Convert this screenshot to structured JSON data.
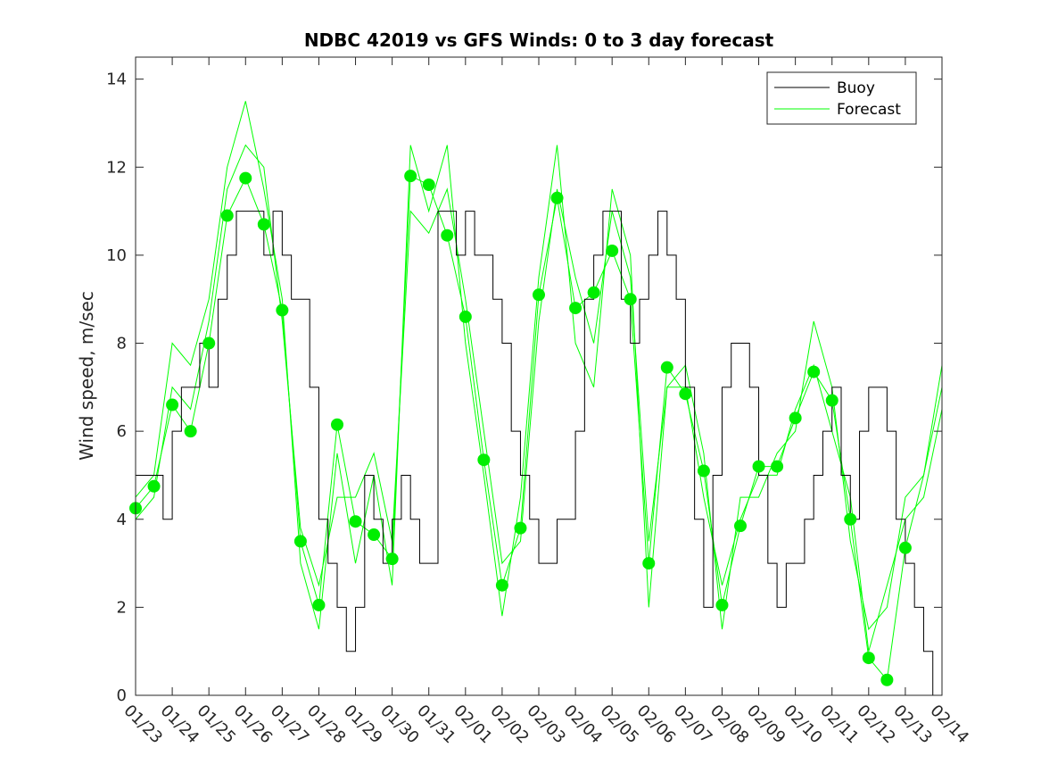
{
  "chart_data": {
    "type": "line",
    "title": "NDBC 42019 vs GFS Winds: 0 to 3 day forecast",
    "xlabel": "",
    "ylabel": "Wind speed, m/sec",
    "ylim": [
      0,
      14.5
    ],
    "yticks": [
      0,
      2,
      4,
      6,
      8,
      10,
      12,
      14
    ],
    "xlim_days": [
      0,
      22
    ],
    "xtick_labels": [
      "01/23",
      "01/24",
      "01/25",
      "01/26",
      "01/27",
      "01/28",
      "01/29",
      "01/30",
      "01/31",
      "02/01",
      "02/02",
      "02/03",
      "02/04",
      "02/05",
      "02/06",
      "02/07",
      "02/08",
      "02/09",
      "02/10",
      "02/11",
      "02/12",
      "02/13",
      "02/14"
    ],
    "grid": false,
    "legend": {
      "position": "top-right",
      "entries": [
        "Buoy",
        "Forecast"
      ]
    },
    "colors": {
      "buoy": "#000000",
      "forecast": "#00ff00",
      "analysis": "#00ee00"
    },
    "buoy": {
      "name": "Buoy",
      "step_days": 0.25,
      "values": [
        5,
        5,
        5,
        4,
        6,
        7,
        7,
        8,
        7,
        9,
        10,
        11,
        11,
        11,
        10,
        11,
        10,
        9,
        9,
        7,
        4,
        3,
        2,
        1,
        2,
        5,
        4,
        3,
        4,
        5,
        4,
        3,
        3,
        11,
        11,
        10,
        11,
        10,
        10,
        9,
        8,
        6,
        5,
        4,
        3,
        3,
        4,
        4,
        6,
        9,
        10,
        11,
        11,
        9,
        8,
        9,
        10,
        11,
        10,
        9,
        7,
        4,
        2,
        5,
        7,
        8,
        8,
        7,
        5,
        3,
        2,
        3,
        3,
        4,
        5,
        6,
        7,
        5,
        4,
        6,
        7,
        7,
        6,
        4,
        3,
        2,
        1,
        0,
        1,
        4,
        5,
        6,
        6
      ]
    },
    "forecast_runs": {
      "name": "Forecast",
      "step_days": 0.5,
      "runs": [
        [
          4.25,
          4.75,
          6.6,
          6.0,
          8.0,
          10.9,
          11.75,
          10.7,
          8.75,
          3.5,
          2.05,
          6.15,
          3.95,
          3.65,
          3.1,
          11.8,
          11.6,
          10.45,
          8.6,
          5.35,
          2.5,
          3.8,
          9.1,
          11.3,
          8.8,
          9.15,
          10.1,
          9.0,
          3.0,
          7.45,
          6.85,
          5.1,
          2.05,
          3.85,
          5.2,
          5.2,
          6.3,
          7.35,
          6.7,
          4.0,
          0.85,
          0.35,
          3.35,
          5.0,
          7.0
        ],
        [
          4.5,
          5.0,
          8.0,
          7.5,
          9.0,
          12.0,
          13.5,
          11.5,
          9.0,
          3.0,
          1.5,
          5.5,
          3.0,
          5.0,
          2.5,
          12.5,
          11.0,
          12.5,
          8.0,
          5.0,
          1.8,
          4.5,
          9.5,
          12.5,
          8.0,
          7.0,
          11.5,
          10.0,
          2.0,
          7.0,
          7.5,
          5.5,
          1.5,
          4.5,
          4.5,
          5.5,
          6.0,
          8.5,
          7.0,
          3.5,
          1.5,
          2.0,
          4.5,
          5.0,
          7.5
        ],
        [
          4.0,
          4.5,
          7.0,
          6.5,
          8.5,
          11.5,
          12.5,
          12.0,
          8.5,
          3.8,
          2.5,
          4.5,
          4.5,
          5.5,
          3.5,
          11.0,
          10.5,
          11.5,
          9.0,
          6.0,
          3.0,
          3.5,
          8.5,
          11.5,
          9.5,
          8.0,
          11.0,
          9.5,
          3.5,
          7.0,
          7.0,
          4.5,
          2.5,
          4.0,
          5.0,
          5.0,
          6.5,
          7.5,
          6.0,
          4.5,
          1.0,
          2.5,
          4.0,
          4.5,
          6.5
        ]
      ]
    },
    "analysis_points": {
      "step_days": 0.5,
      "values": [
        4.25,
        4.75,
        6.6,
        6.0,
        8.0,
        10.9,
        11.75,
        10.7,
        8.75,
        3.5,
        2.05,
        6.15,
        3.95,
        3.65,
        3.1,
        11.8,
        11.6,
        10.45,
        8.6,
        5.35,
        2.5,
        3.8,
        9.1,
        11.3,
        8.8,
        9.15,
        10.1,
        9.0,
        3.0,
        7.45,
        6.85,
        5.1,
        2.05,
        3.85,
        5.2,
        5.2,
        6.3,
        7.35,
        6.7,
        4.0,
        0.85,
        0.35,
        3.35
      ]
    }
  }
}
